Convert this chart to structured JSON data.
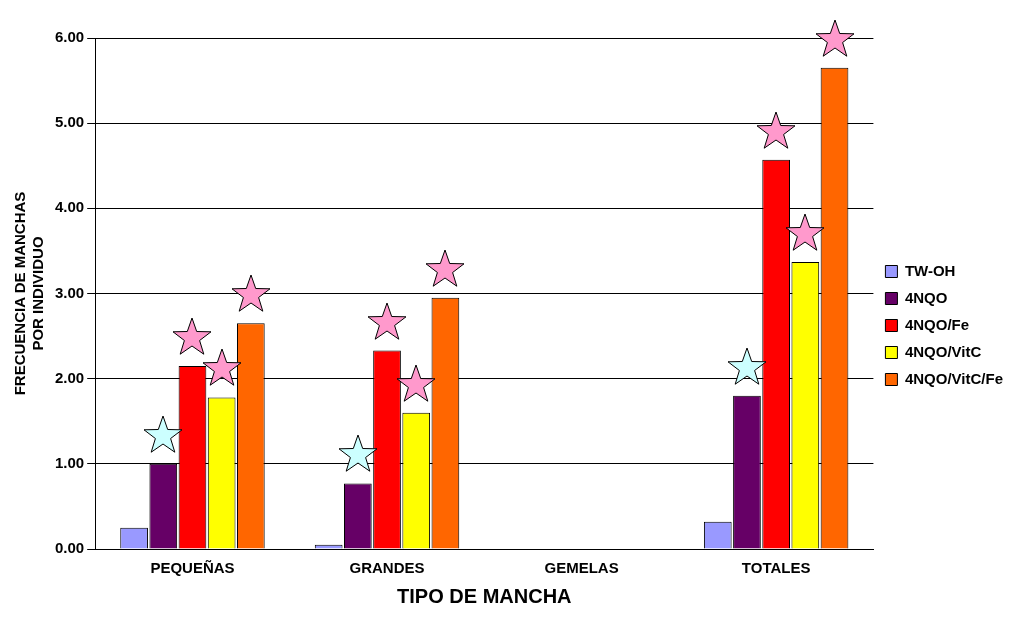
{
  "chart_data": {
    "type": "bar",
    "xlabel": "TIPO DE MANCHA",
    "ylabel": "FRECUENCIA DE MANCHAS\nPOR INDIVIDUO",
    "categories": [
      "PEQUEÑAS",
      "GRANDES",
      "GEMELAS",
      "TOTALES"
    ],
    "series": [
      {
        "name": "TW-OH",
        "color": "#9999ff",
        "values": [
          0.25,
          0.05,
          0,
          0.32
        ]
      },
      {
        "name": "4NQO",
        "color": "#660066",
        "values": [
          1.0,
          0.77,
          0,
          1.8
        ]
      },
      {
        "name": "4NQO/Fe",
        "color": "#ff0000",
        "values": [
          2.15,
          2.33,
          0,
          4.57
        ]
      },
      {
        "name": "4NQO/VitC",
        "color": "#ffff00",
        "values": [
          1.78,
          1.6,
          0,
          3.37
        ]
      },
      {
        "name": "4NQO/VitC/Fe",
        "color": "#ff6600",
        "values": [
          2.65,
          2.95,
          0,
          5.65
        ]
      }
    ],
    "ylim": [
      0,
      6
    ],
    "yticks": [
      {
        "value": 0,
        "label": "0.00"
      },
      {
        "value": 1,
        "label": "1.00"
      },
      {
        "value": 2,
        "label": "2.00"
      },
      {
        "value": 3,
        "label": "3.00"
      },
      {
        "value": 4,
        "label": "4.00"
      },
      {
        "value": 5,
        "label": "5.00"
      },
      {
        "value": 6,
        "label": "6.00"
      }
    ],
    "grid": "y",
    "legend": "right"
  }
}
